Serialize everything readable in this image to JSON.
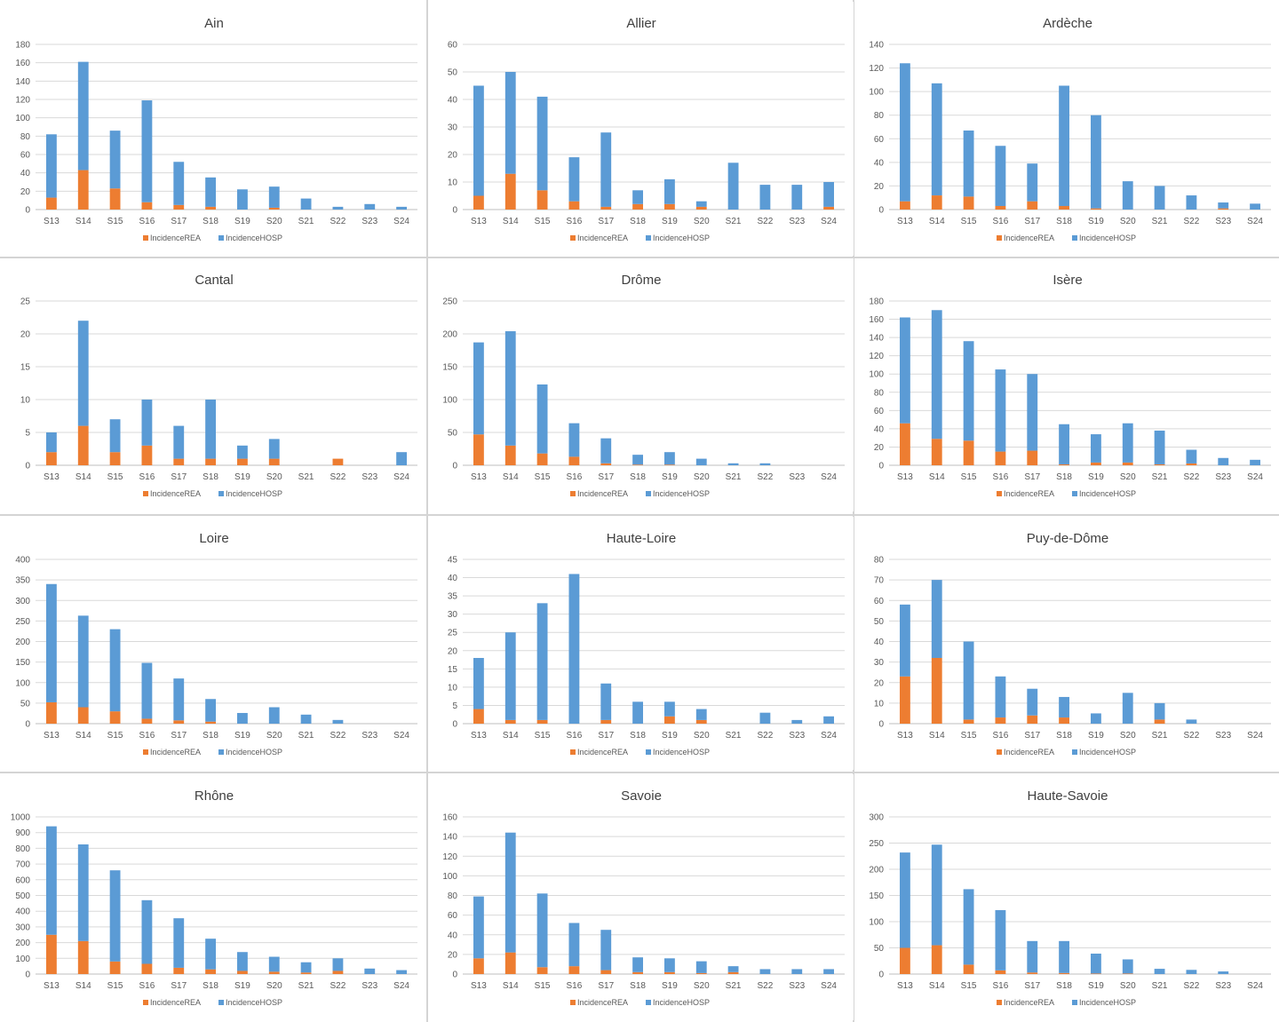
{
  "colors": {
    "rea": "#ED7D31",
    "hosp": "#5B9BD5",
    "grid": "#d9d9d9",
    "axis": "#bfbfbf"
  },
  "legend": {
    "rea": "IncidenceREA",
    "hosp": "IncidenceHOSP"
  },
  "chart_data": [
    {
      "type": "bar",
      "stacked": true,
      "title": "Ain",
      "categories": [
        "S13",
        "S14",
        "S15",
        "S16",
        "S17",
        "S18",
        "S19",
        "S20",
        "S21",
        "S22",
        "S23",
        "S24"
      ],
      "ylim": [
        0,
        180
      ],
      "yticks": [
        0,
        20,
        40,
        60,
        80,
        100,
        120,
        140,
        160,
        180
      ],
      "grid": true,
      "legend": "bottom",
      "series": [
        {
          "name": "IncidenceREA",
          "values": [
            13,
            43,
            23,
            8,
            5,
            3,
            0,
            2,
            0,
            0,
            0,
            0
          ]
        },
        {
          "name": "IncidenceHOSP",
          "values": [
            69,
            118,
            63,
            111,
            47,
            32,
            22,
            23,
            12,
            3,
            6,
            3
          ]
        }
      ]
    },
    {
      "type": "bar",
      "stacked": true,
      "title": "Allier",
      "categories": [
        "S13",
        "S14",
        "S15",
        "S16",
        "S17",
        "S18",
        "S19",
        "S20",
        "S21",
        "S22",
        "S23",
        "S24"
      ],
      "ylim": [
        0,
        60
      ],
      "yticks": [
        0,
        10,
        20,
        30,
        40,
        50,
        60
      ],
      "grid": true,
      "legend": "bottom",
      "series": [
        {
          "name": "IncidenceREA",
          "values": [
            5,
            13,
            7,
            3,
            1,
            2,
            2,
            1,
            0,
            0,
            0,
            1
          ]
        },
        {
          "name": "IncidenceHOSP",
          "values": [
            40,
            37,
            34,
            16,
            27,
            5,
            9,
            2,
            17,
            9,
            9,
            9
          ]
        }
      ]
    },
    {
      "type": "bar",
      "stacked": true,
      "title": "Ardèche",
      "categories": [
        "S13",
        "S14",
        "S15",
        "S16",
        "S17",
        "S18",
        "S19",
        "S20",
        "S21",
        "S22",
        "S23",
        "S24"
      ],
      "ylim": [
        0,
        140
      ],
      "yticks": [
        0,
        20,
        40,
        60,
        80,
        100,
        120,
        140
      ],
      "grid": true,
      "legend": "bottom",
      "series": [
        {
          "name": "IncidenceREA",
          "values": [
            7,
            12,
            11,
            3,
            7,
            3,
            1,
            0,
            0,
            0,
            1,
            0
          ]
        },
        {
          "name": "IncidenceHOSP",
          "values": [
            117,
            95,
            56,
            51,
            32,
            102,
            79,
            24,
            20,
            12,
            5,
            5
          ]
        }
      ]
    },
    {
      "type": "bar",
      "stacked": true,
      "title": "Cantal",
      "categories": [
        "S13",
        "S14",
        "S15",
        "S16",
        "S17",
        "S18",
        "S19",
        "S20",
        "S21",
        "S22",
        "S23",
        "S24"
      ],
      "ylim": [
        0,
        25
      ],
      "yticks": [
        0,
        5,
        10,
        15,
        20,
        25
      ],
      "grid": true,
      "legend": "bottom",
      "series": [
        {
          "name": "IncidenceREA",
          "values": [
            2,
            6,
            2,
            3,
            1,
            1,
            1,
            1,
            0,
            1,
            0,
            0
          ]
        },
        {
          "name": "IncidenceHOSP",
          "values": [
            3,
            16,
            5,
            7,
            5,
            9,
            2,
            3,
            0,
            0,
            0,
            2
          ]
        }
      ]
    },
    {
      "type": "bar",
      "stacked": true,
      "title": "Drôme",
      "categories": [
        "S13",
        "S14",
        "S15",
        "S16",
        "S17",
        "S18",
        "S19",
        "S20",
        "S21",
        "S22",
        "S23",
        "S24"
      ],
      "ylim": [
        0,
        250
      ],
      "yticks": [
        0,
        50,
        100,
        150,
        200,
        250
      ],
      "grid": true,
      "legend": "bottom",
      "series": [
        {
          "name": "IncidenceREA",
          "values": [
            47,
            30,
            18,
            13,
            3,
            1,
            1,
            0,
            0,
            0,
            0,
            0
          ]
        },
        {
          "name": "IncidenceHOSP",
          "values": [
            140,
            174,
            105,
            51,
            38,
            15,
            19,
            10,
            3,
            3,
            0,
            0
          ]
        }
      ]
    },
    {
      "type": "bar",
      "stacked": true,
      "title": "Isère",
      "categories": [
        "S13",
        "S14",
        "S15",
        "S16",
        "S17",
        "S18",
        "S19",
        "S20",
        "S21",
        "S22",
        "S23",
        "S24"
      ],
      "ylim": [
        0,
        180
      ],
      "yticks": [
        0,
        20,
        40,
        60,
        80,
        100,
        120,
        140,
        160,
        180
      ],
      "grid": true,
      "legend": "bottom",
      "series": [
        {
          "name": "IncidenceREA",
          "values": [
            46,
            29,
            27,
            15,
            16,
            1,
            3,
            3,
            1,
            2,
            0,
            0
          ]
        },
        {
          "name": "IncidenceHOSP",
          "values": [
            116,
            141,
            109,
            90,
            84,
            44,
            31,
            43,
            37,
            15,
            8,
            6
          ]
        }
      ]
    },
    {
      "type": "bar",
      "stacked": true,
      "title": "Loire",
      "categories": [
        "S13",
        "S14",
        "S15",
        "S16",
        "S17",
        "S18",
        "S19",
        "S20",
        "S21",
        "S22",
        "S23",
        "S24"
      ],
      "ylim": [
        0,
        400
      ],
      "yticks": [
        0,
        50,
        100,
        150,
        200,
        250,
        300,
        350,
        400
      ],
      "grid": true,
      "legend": "bottom",
      "series": [
        {
          "name": "IncidenceREA",
          "values": [
            52,
            40,
            30,
            12,
            8,
            5,
            0,
            0,
            0,
            0,
            0,
            0
          ]
        },
        {
          "name": "IncidenceHOSP",
          "values": [
            288,
            223,
            200,
            136,
            102,
            55,
            26,
            40,
            22,
            9,
            0,
            0
          ]
        }
      ]
    },
    {
      "type": "bar",
      "stacked": true,
      "title": "Haute-Loire",
      "categories": [
        "S13",
        "S14",
        "S15",
        "S16",
        "S17",
        "S18",
        "S19",
        "S20",
        "S21",
        "S22",
        "S23",
        "S24"
      ],
      "ylim": [
        0,
        45
      ],
      "yticks": [
        0,
        5,
        10,
        15,
        20,
        25,
        30,
        35,
        40,
        45
      ],
      "grid": true,
      "legend": "bottom",
      "series": [
        {
          "name": "IncidenceREA",
          "values": [
            4,
            1,
            1,
            0,
            1,
            0,
            2,
            1,
            0,
            0,
            0,
            0
          ]
        },
        {
          "name": "IncidenceHOSP",
          "values": [
            14,
            24,
            32,
            41,
            10,
            6,
            4,
            3,
            0,
            3,
            1,
            2
          ]
        }
      ]
    },
    {
      "type": "bar",
      "stacked": true,
      "title": "Puy-de-Dôme",
      "categories": [
        "S13",
        "S14",
        "S15",
        "S16",
        "S17",
        "S18",
        "S19",
        "S20",
        "S21",
        "S22",
        "S23",
        "S24"
      ],
      "ylim": [
        0,
        80
      ],
      "yticks": [
        0,
        10,
        20,
        30,
        40,
        50,
        60,
        70,
        80
      ],
      "grid": true,
      "legend": "bottom",
      "series": [
        {
          "name": "IncidenceREA",
          "values": [
            23,
            32,
            2,
            3,
            4,
            3,
            0,
            0,
            2,
            0,
            0,
            0
          ]
        },
        {
          "name": "IncidenceHOSP",
          "values": [
            35,
            38,
            38,
            20,
            13,
            10,
            5,
            15,
            8,
            2,
            0,
            0
          ]
        }
      ]
    },
    {
      "type": "bar",
      "stacked": true,
      "title": "Rhône",
      "categories": [
        "S13",
        "S14",
        "S15",
        "S16",
        "S17",
        "S18",
        "S19",
        "S20",
        "S21",
        "S22",
        "S23",
        "S24"
      ],
      "ylim": [
        0,
        1000
      ],
      "yticks": [
        0,
        100,
        200,
        300,
        400,
        500,
        600,
        700,
        800,
        900,
        1000
      ],
      "grid": true,
      "legend": "bottom",
      "series": [
        {
          "name": "IncidenceREA",
          "values": [
            250,
            210,
            80,
            65,
            40,
            30,
            20,
            15,
            10,
            20,
            0,
            0
          ]
        },
        {
          "name": "IncidenceHOSP",
          "values": [
            690,
            615,
            580,
            405,
            315,
            195,
            120,
            95,
            65,
            80,
            35,
            25
          ]
        }
      ]
    },
    {
      "type": "bar",
      "stacked": true,
      "title": "Savoie",
      "categories": [
        "S13",
        "S14",
        "S15",
        "S16",
        "S17",
        "S18",
        "S19",
        "S20",
        "S21",
        "S22",
        "S23",
        "S24"
      ],
      "ylim": [
        0,
        160
      ],
      "yticks": [
        0,
        20,
        40,
        60,
        80,
        100,
        120,
        140,
        160
      ],
      "grid": true,
      "legend": "bottom",
      "series": [
        {
          "name": "IncidenceREA",
          "values": [
            16,
            22,
            7,
            8,
            4,
            2,
            2,
            1,
            2,
            0,
            0,
            0
          ]
        },
        {
          "name": "IncidenceHOSP",
          "values": [
            63,
            122,
            75,
            44,
            41,
            15,
            14,
            12,
            6,
            5,
            5,
            5
          ]
        }
      ]
    },
    {
      "type": "bar",
      "stacked": true,
      "title": "Haute-Savoie",
      "categories": [
        "S13",
        "S14",
        "S15",
        "S16",
        "S17",
        "S18",
        "S19",
        "S20",
        "S21",
        "S22",
        "S23",
        "S24"
      ],
      "ylim": [
        0,
        300
      ],
      "yticks": [
        0,
        50,
        100,
        150,
        200,
        250,
        300
      ],
      "grid": true,
      "legend": "bottom",
      "series": [
        {
          "name": "IncidenceREA",
          "values": [
            50,
            55,
            18,
            7,
            3,
            2,
            1,
            1,
            0,
            0,
            0,
            0
          ]
        },
        {
          "name": "IncidenceHOSP",
          "values": [
            182,
            192,
            144,
            115,
            60,
            61,
            38,
            27,
            10,
            8,
            5,
            0
          ]
        }
      ]
    }
  ]
}
